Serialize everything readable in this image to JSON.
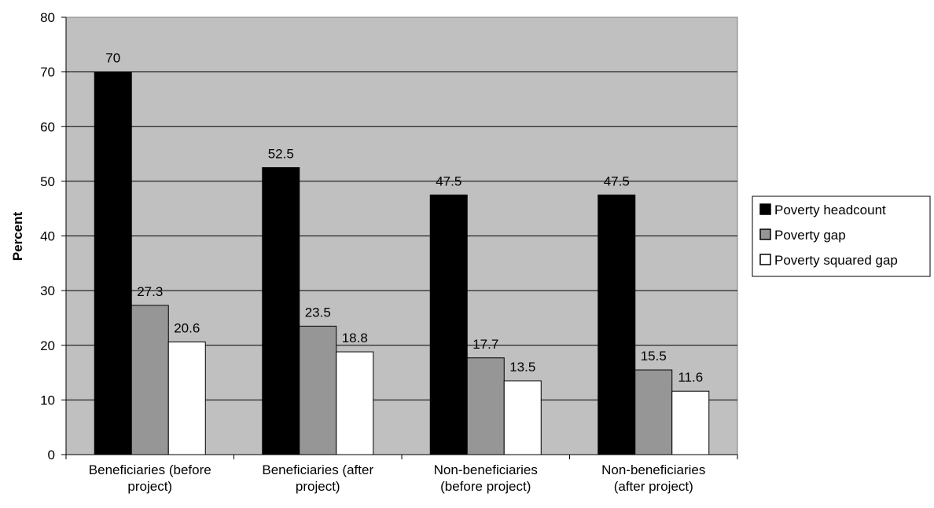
{
  "chart_data": {
    "type": "bar",
    "categories": [
      [
        "Beneficiaries (before",
        "project)"
      ],
      [
        "Beneficiaries (after",
        "project)"
      ],
      [
        "Non-beneficiaries",
        "(before project)"
      ],
      [
        "Non-beneficiaries",
        "(after project)"
      ]
    ],
    "series": [
      {
        "name": "Poverty headcount",
        "color": "#000000",
        "values": [
          70,
          52.5,
          47.5,
          47.5
        ],
        "labels": [
          "70",
          "52.5",
          "47.5",
          "47.5"
        ]
      },
      {
        "name": "Poverty gap",
        "color": "#969696",
        "values": [
          27.3,
          23.5,
          17.7,
          15.5
        ],
        "labels": [
          "27.3",
          "23.5",
          "17.7",
          "15.5"
        ]
      },
      {
        "name": "Poverty squared gap",
        "color": "#ffffff",
        "values": [
          20.6,
          18.8,
          13.5,
          11.6
        ],
        "labels": [
          "20.6",
          "18.8",
          "13.5",
          "11.6"
        ]
      }
    ],
    "title": "",
    "xlabel": "",
    "ylabel": "Percent",
    "ylim": [
      0,
      80
    ],
    "yticks": [
      0,
      10,
      20,
      30,
      40,
      50,
      60,
      70,
      80
    ],
    "grid": true,
    "plot_background": "#c0c0c0",
    "legend_position": "right"
  }
}
